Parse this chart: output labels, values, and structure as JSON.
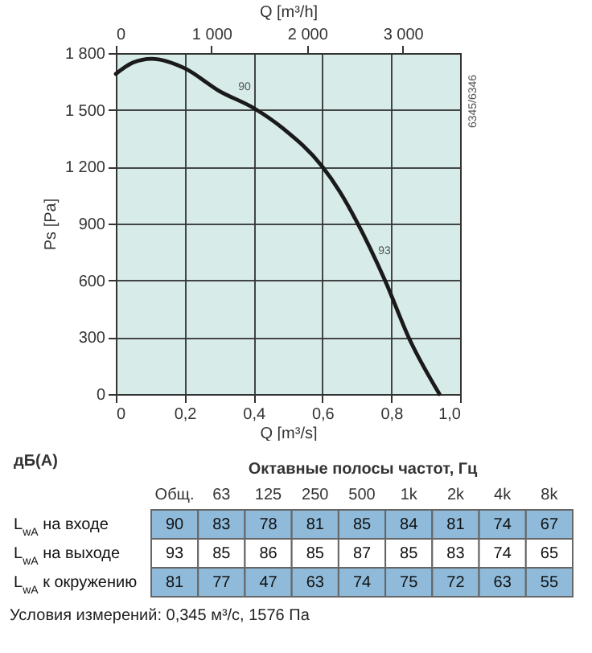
{
  "chart_data": [
    {
      "type": "line",
      "xlabel": "Q [m³/s]",
      "ylabel": "Ps [Pa]",
      "x2label": "Q [m³/h]",
      "x": [
        0,
        0.05,
        0.104,
        0.2,
        0.3,
        0.4,
        0.487,
        0.6,
        0.65,
        0.697,
        0.782,
        0.853,
        0.94
      ],
      "series": [
        {
          "color": "#1a1a1a",
          "values": [
            1690,
            1750,
            1770,
            1720,
            1600,
            1510,
            1400,
            1200,
            1070,
            920,
            600,
            290,
            0
          ]
        }
      ],
      "xlim": [
        0,
        1.0
      ],
      "xticks": [
        0,
        {
          "value": 0.2,
          "label": "0,2"
        },
        {
          "value": 0.4,
          "label": "0,4"
        },
        {
          "value": 0.6,
          "label": "0,6"
        },
        {
          "value": 0.8,
          "label": "0,8"
        },
        {
          "value": 1.0,
          "label": "1,0"
        }
      ],
      "x2lim": [
        0,
        3600
      ],
      "x2ticks": [
        0,
        {
          "value": 1000,
          "label": "1 000"
        },
        {
          "value": 2000,
          "label": "2 000"
        },
        {
          "value": 3000,
          "label": "3 000"
        }
      ],
      "ylim": [
        0,
        1800
      ],
      "yticks": [
        0,
        300,
        600,
        900,
        {
          "value": 1200,
          "label": "1 200"
        },
        {
          "value": 1500,
          "label": "1 500"
        },
        {
          "value": 1800,
          "label": "1 800"
        }
      ],
      "grid": true,
      "annotations": [
        "6345/6346",
        "90",
        "93"
      ]
    },
    {
      "type": "heatmap",
      "xlabel": "Октавные полосы частот, Гц",
      "ylabel": "дБ(A)",
      "categories": [
        "Общ.",
        "63",
        "125",
        "250",
        "500",
        "1k",
        "2k",
        "4k",
        "8k"
      ],
      "y_categories": [
        "L$_{wA}$ на входе",
        "L$_{wA}$ на выходе",
        "L$_{wA}$ к окружению"
      ],
      "cells": [
        [
          90,
          83,
          78,
          81,
          85,
          84,
          81,
          74,
          67
        ],
        [
          93,
          85,
          86,
          85,
          87,
          85,
          83,
          74,
          65
        ],
        [
          81,
          77,
          47,
          63,
          74,
          75,
          72,
          63,
          55
        ]
      ],
      "colors": [
        "#8fbad9",
        "#ffffff",
        "#8fbad9"
      ],
      "data_labels": true,
      "annotations": [
        "Условия измерений: 0,345 м³/с, 1576 Па"
      ]
    }
  ]
}
